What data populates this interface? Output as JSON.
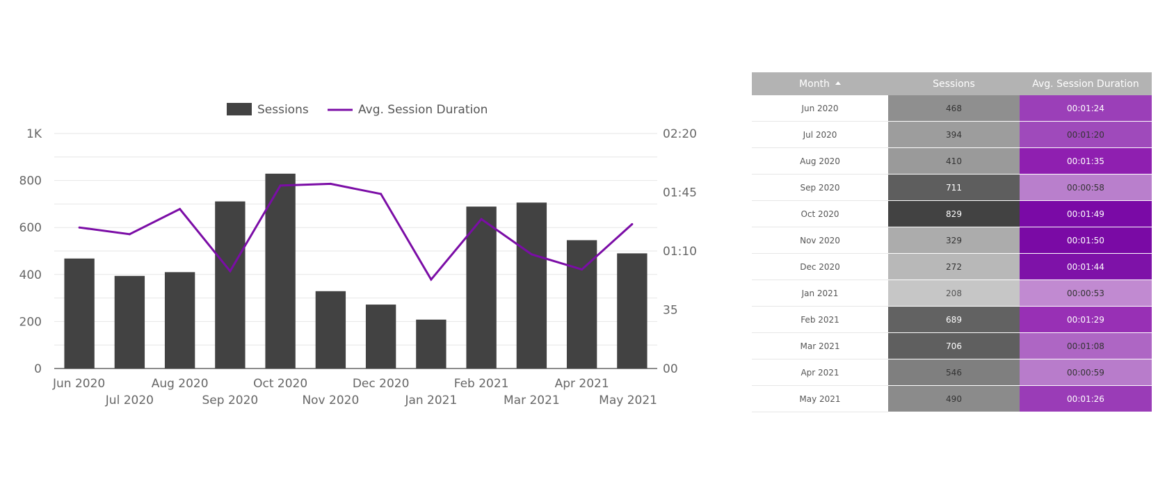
{
  "chart_data": {
    "type": "bar+line",
    "categories": [
      "Jun 2020",
      "Jul 2020",
      "Aug 2020",
      "Sep 2020",
      "Oct 2020",
      "Nov 2020",
      "Dec 2020",
      "Jan 2021",
      "Feb 2021",
      "Mar 2021",
      "Apr 2021",
      "May 2021"
    ],
    "series": [
      {
        "name": "Sessions",
        "type": "bar",
        "axis": "left",
        "values": [
          468,
          394,
          410,
          711,
          829,
          329,
          272,
          208,
          689,
          706,
          546,
          490
        ],
        "color": "#424242"
      },
      {
        "name": "Avg. Session Duration",
        "type": "line",
        "axis": "right",
        "values": [
          "00:01:24",
          "00:01:20",
          "00:01:35",
          "00:00:58",
          "00:01:49",
          "00:01:50",
          "00:01:44",
          "00:00:53",
          "00:01:29",
          "00:01:08",
          "00:00:59",
          "00:01:26"
        ],
        "color": "#7b0da6"
      }
    ],
    "left_axis": {
      "ticks": [
        "0",
        "200",
        "400",
        "600",
        "800",
        "1K"
      ],
      "range": [
        0,
        1000
      ]
    },
    "right_axis": {
      "ticks": [
        "00",
        "35",
        "01:10",
        "01:45",
        "02:20"
      ],
      "range": [
        "00:00:00",
        "00:02:20"
      ]
    },
    "legend": "top-center",
    "grid": true
  },
  "table": {
    "headers": {
      "month": "Month",
      "sessions": "Sessions",
      "duration": "Avg. Session Duration"
    },
    "sort_icon": "sort-ascending-icon",
    "session_colors": [
      "#8f8f8f",
      "#9d9d9d",
      "#9a9a9a",
      "#5e5e5e",
      "#424242",
      "#acacac",
      "#b8b8b8",
      "#c6c6c6",
      "#626262",
      "#5f5f5f",
      "#7f7f7f",
      "#8b8b8b"
    ],
    "duration_colors": [
      "#9b3fb8",
      "#9f4abb",
      "#8f1fb0",
      "#b97fcc",
      "#7a0aa6",
      "#7a0aa5",
      "#7e12a8",
      "#c18ad1",
      "#9830b5",
      "#ae66c4",
      "#b87ccb",
      "#9a3cb7"
    ],
    "duration_text_colors": [
      "#ffffff",
      "#333333",
      "#ffffff",
      "#333333",
      "#ffffff",
      "#ffffff",
      "#ffffff",
      "#333333",
      "#ffffff",
      "#333333",
      "#333333",
      "#ffffff"
    ],
    "session_text_colors": [
      "#333333",
      "#333333",
      "#333333",
      "#ffffff",
      "#ffffff",
      "#333333",
      "#333333",
      "#555555",
      "#ffffff",
      "#ffffff",
      "#333333",
      "#333333"
    ]
  }
}
